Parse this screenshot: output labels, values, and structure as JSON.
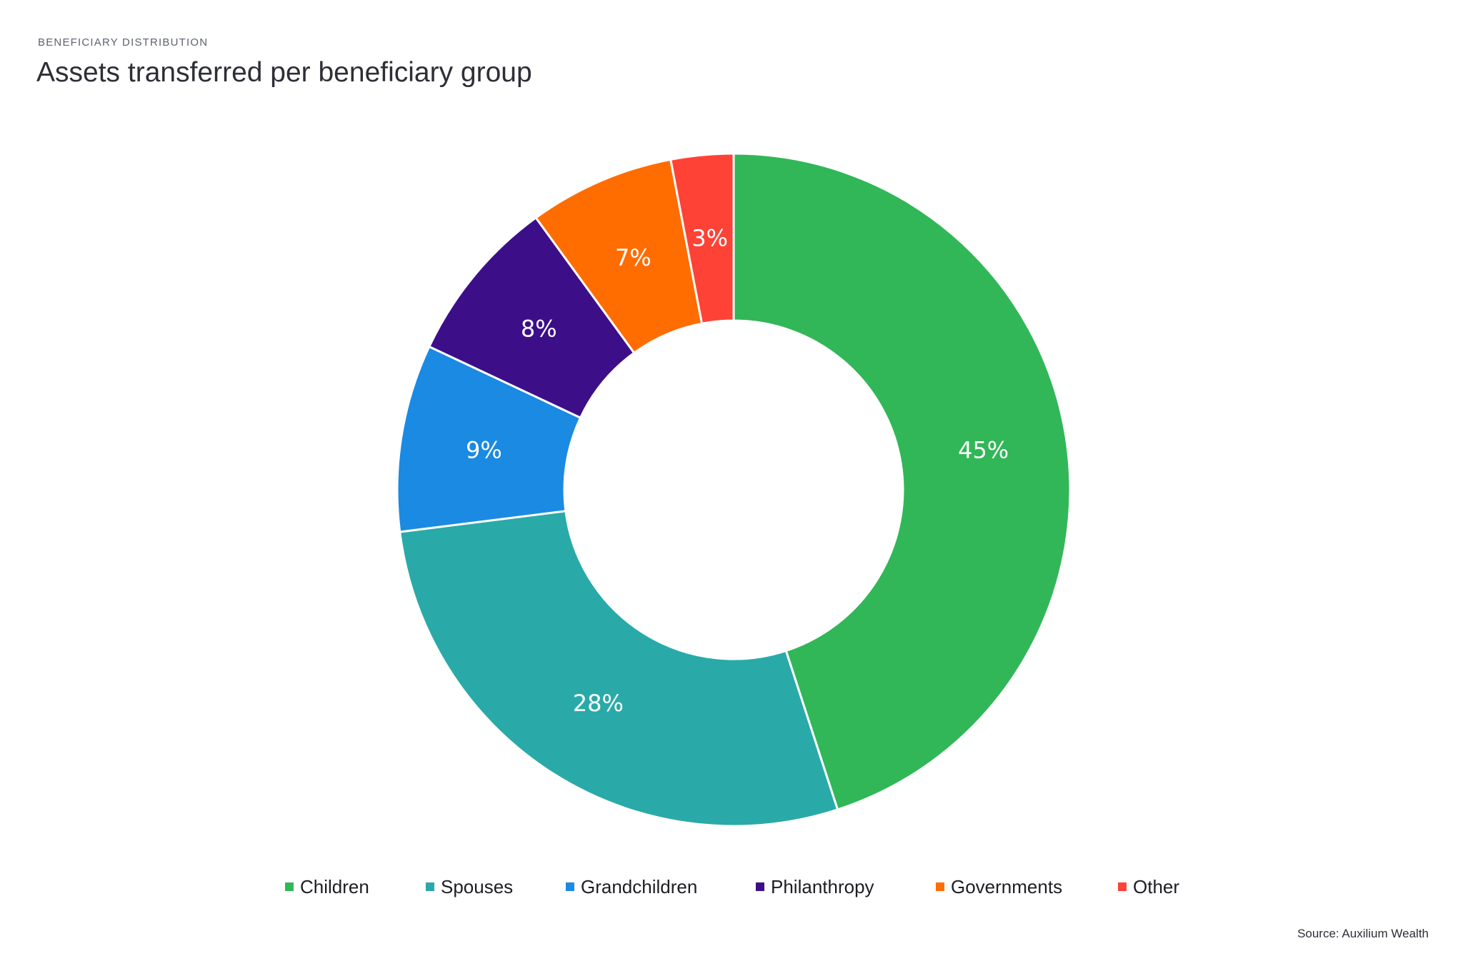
{
  "header": {
    "eyebrow": "BENEFICIARY DISTRIBUTION",
    "title": "Assets transferred per beneficiary group"
  },
  "footer": {
    "source": "Source: Auxilium Wealth"
  },
  "chart_data": {
    "type": "pie",
    "variant": "donut",
    "title": "Assets transferred per beneficiary group",
    "unit": "%",
    "start_angle": "12 o'clock, clockwise",
    "slices": [
      {
        "label": "Children",
        "value": 45,
        "display": "45%",
        "color": "#31b757"
      },
      {
        "label": "Spouses",
        "value": 28,
        "display": "28%",
        "color": "#29aaa9"
      },
      {
        "label": "Grandchildren",
        "value": 9,
        "display": "9%",
        "color": "#1a8ae3"
      },
      {
        "label": "Philanthropy",
        "value": 8,
        "display": "8%",
        "color": "#3c0f89"
      },
      {
        "label": "Governments",
        "value": 7,
        "display": "7%",
        "color": "#ff6d00"
      },
      {
        "label": "Other",
        "value": 3,
        "display": "3%",
        "color": "#ff4236"
      }
    ],
    "legend_position": "bottom"
  }
}
